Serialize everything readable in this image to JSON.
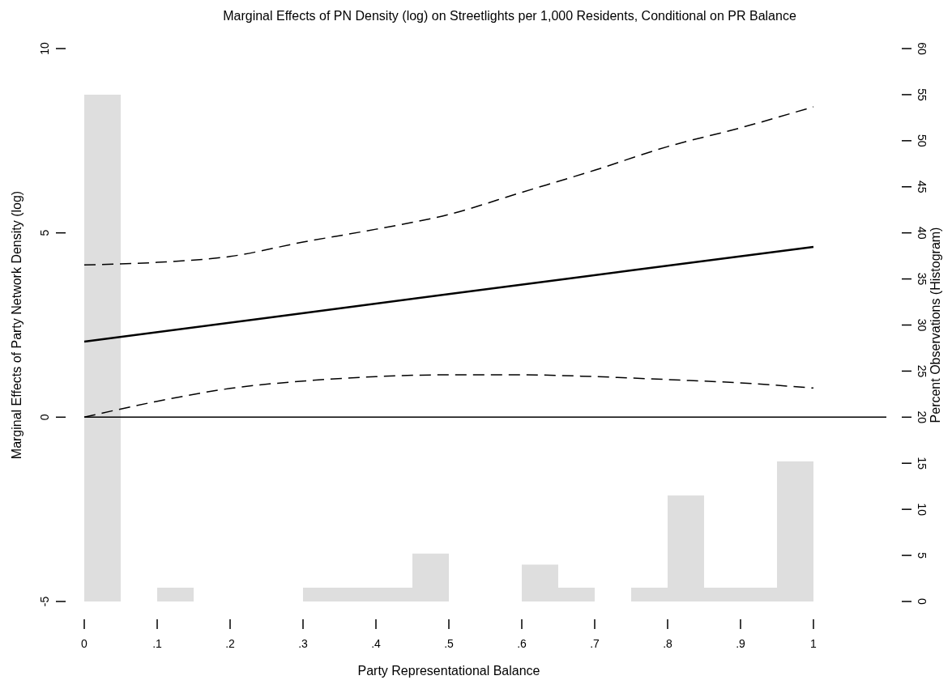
{
  "chart_data": {
    "type": "line",
    "title": "Marginal Effects of PN Density (log) on Streetlights per 1,000 Residents, Conditional on PR Balance",
    "xlabel": "Party Representational Balance",
    "ylabel": "Marginal Effects of Party Network Density (log)",
    "y2label": "Percent Observations (Histogram)",
    "xlim": [
      0,
      1.1
    ],
    "xticks": [
      0,
      {
        "value": 0.1,
        "label": ".1"
      },
      {
        "value": 0.2,
        "label": ".2"
      },
      {
        "value": 0.3,
        "label": ".3"
      },
      {
        "value": 0.4,
        "label": ".4"
      },
      {
        "value": 0.5,
        "label": ".5"
      },
      {
        "value": 0.6,
        "label": ".6"
      },
      {
        "value": 0.7,
        "label": ".7"
      },
      {
        "value": 0.8,
        "label": ".8"
      },
      {
        "value": 0.9,
        "label": ".9"
      },
      1
    ],
    "ylim": [
      -5,
      10
    ],
    "yticks": [
      -5,
      0,
      5,
      10
    ],
    "y2lim": [
      0,
      60
    ],
    "y2ticks": [
      0,
      5,
      10,
      15,
      20,
      25,
      30,
      35,
      40,
      45,
      50,
      55,
      60
    ],
    "grid": false,
    "ref_lines": [
      {
        "axis": "y",
        "value": 0,
        "color": "#000000",
        "line_style": "solid"
      }
    ],
    "series": [
      {
        "type": "histogram",
        "axis": "y2",
        "color": "#dedede",
        "bins": [
          0,
          0.05,
          0.1,
          0.15,
          0.2,
          0.25,
          0.3,
          0.35,
          0.4,
          0.45,
          0.5,
          0.55,
          0.6,
          0.65,
          0.7,
          0.75,
          0.8,
          0.85,
          0.9,
          0.95,
          1
        ],
        "values": [
          55,
          0,
          1.5,
          0,
          0,
          0,
          1.5,
          1.5,
          1.5,
          5.2,
          0,
          0,
          4,
          1.5,
          0,
          1.5,
          11.5,
          1.5,
          1.5,
          15.2
        ]
      },
      {
        "color": "#000000",
        "line_style": "solid",
        "x": [
          0,
          0.25,
          0.5,
          0.75,
          1
        ],
        "values": [
          2.05,
          2.69,
          3.34,
          3.98,
          4.62
        ]
      },
      {
        "color": "#000000",
        "line_style": "dashed",
        "x": [
          0,
          0.1,
          0.2,
          0.3,
          0.4,
          0.5,
          0.6,
          0.7,
          0.8,
          0.9,
          1
        ],
        "values": [
          4.13,
          4.2,
          4.36,
          4.75,
          5.1,
          5.5,
          6.1,
          6.7,
          7.34,
          7.85,
          8.42
        ]
      },
      {
        "color": "#000000",
        "line_style": "dashed",
        "x": [
          0,
          0.1,
          0.2,
          0.3,
          0.4,
          0.5,
          0.6,
          0.7,
          0.8,
          0.9,
          1
        ],
        "values": [
          0,
          0.43,
          0.78,
          0.98,
          1.1,
          1.15,
          1.15,
          1.1,
          1.02,
          0.93,
          0.79
        ]
      }
    ]
  }
}
